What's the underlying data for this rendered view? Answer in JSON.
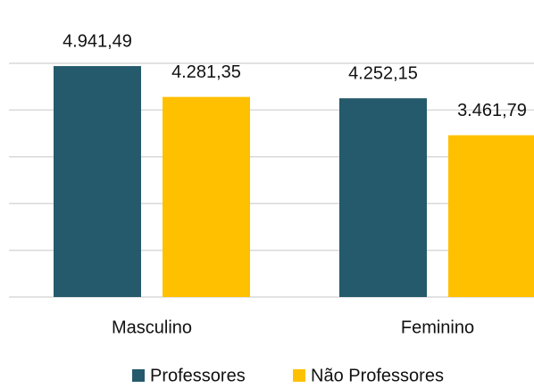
{
  "chart_data": {
    "type": "bar",
    "categories": [
      "Masculino",
      "Feminino"
    ],
    "series": [
      {
        "name": "Professores",
        "color": "#245a6b",
        "values": [
          4941.49,
          4252.15
        ],
        "value_labels": [
          "4.941,49",
          "4.252,15"
        ]
      },
      {
        "name": "Não Professores",
        "color": "#ffc000",
        "values": [
          4281.35,
          3461.79
        ],
        "value_labels": [
          "4.281,35",
          "3.461,79"
        ]
      }
    ],
    "ylim": [
      0,
      5000
    ],
    "yticks": [
      0,
      1000,
      2000,
      3000,
      4000,
      5000
    ],
    "grid": true,
    "legend": "bottom"
  }
}
